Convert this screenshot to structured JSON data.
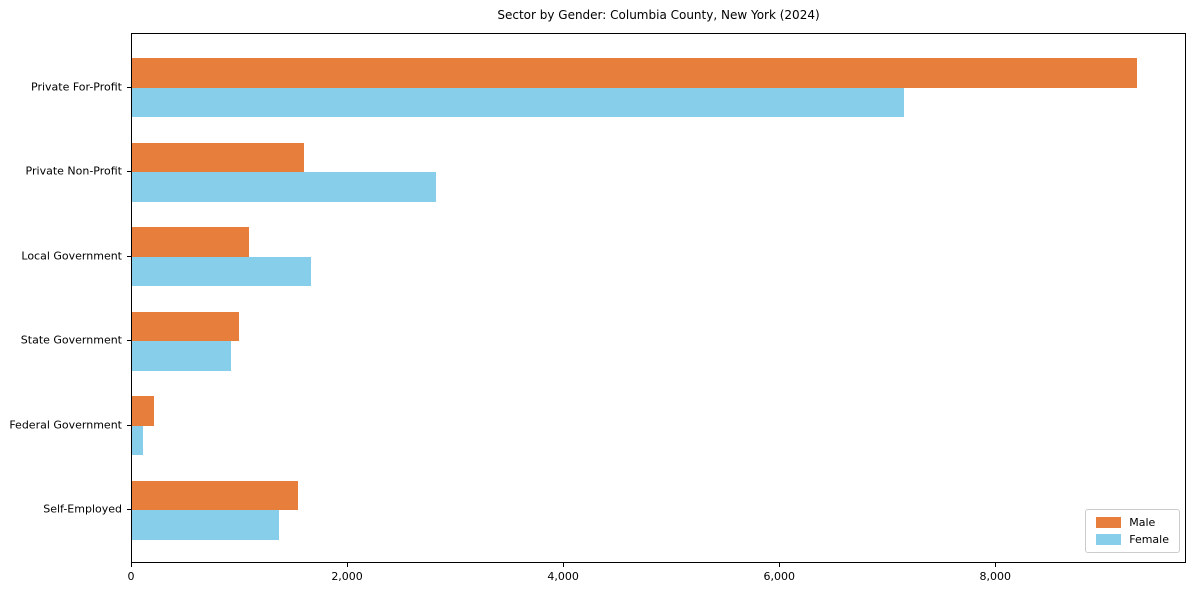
{
  "chart_data": {
    "type": "bar",
    "orientation": "horizontal",
    "title": "Sector by Gender: Columbia County, New York (2024)",
    "categories": [
      "Private For-Profit",
      "Private Non-Profit",
      "Local Government",
      "State Government",
      "Federal Government",
      "Self-Employed"
    ],
    "series": [
      {
        "name": "Male",
        "color": "#E87E3B",
        "values": [
          9300,
          1590,
          1080,
          990,
          200,
          1540
        ]
      },
      {
        "name": "Female",
        "color": "#87CEEB",
        "values": [
          7150,
          2810,
          1660,
          920,
          100,
          1360
        ]
      }
    ],
    "xlabel": "",
    "ylabel": "",
    "xlim": [
      0,
      9765
    ],
    "xticks": [
      0,
      2000,
      4000,
      6000,
      8000
    ],
    "xtick_labels": [
      "0",
      "2,000",
      "4,000",
      "6,000",
      "8,000"
    ],
    "legend_position": "lower right",
    "grid": false,
    "background_color": "#ffffff",
    "spine_color": "#000000"
  }
}
